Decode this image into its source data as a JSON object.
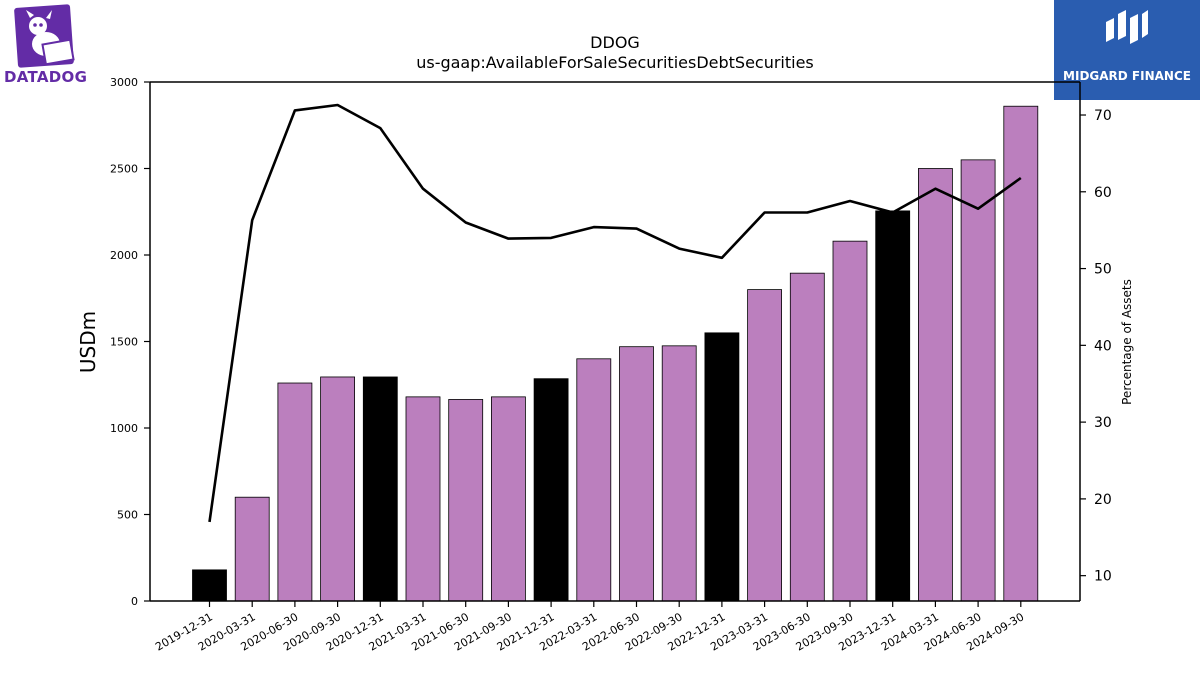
{
  "branding": {
    "left_logo_text": "DATADOG",
    "right_logo_text": "MIDGARD FINANCE",
    "left_logo_color": "#632ca6",
    "right_logo_bg": "#2a5db0"
  },
  "chart_data": {
    "type": "bar",
    "title": "DDOG",
    "subtitle": "us-gaap:AvailableForSaleSecuritiesDebtSecurities",
    "ylabel": "USDm",
    "y2label": "Percentage of Assets",
    "categories": [
      "2019-12-31",
      "2020-03-31",
      "2020-06-30",
      "2020-09-30",
      "2020-12-31",
      "2021-03-31",
      "2021-06-30",
      "2021-09-30",
      "2021-12-31",
      "2022-03-31",
      "2022-06-30",
      "2022-09-30",
      "2022-12-31",
      "2023-03-31",
      "2023-06-30",
      "2023-09-30",
      "2023-12-31",
      "2024-03-31",
      "2024-06-30",
      "2024-09-30"
    ],
    "series": [
      {
        "type": "bar",
        "values": [
          180,
          600,
          1260,
          1295,
          1295,
          1180,
          1165,
          1180,
          1285,
          1400,
          1470,
          1475,
          1550,
          1800,
          1895,
          2080,
          2255,
          2500,
          2550,
          2860
        ],
        "colors": [
          "#000000",
          "#bb7fbe",
          "#bb7fbe",
          "#bb7fbe",
          "#000000",
          "#bb7fbe",
          "#bb7fbe",
          "#bb7fbe",
          "#000000",
          "#bb7fbe",
          "#bb7fbe",
          "#bb7fbe",
          "#000000",
          "#bb7fbe",
          "#bb7fbe",
          "#bb7fbe",
          "#000000",
          "#bb7fbe",
          "#bb7fbe",
          "#bb7fbe"
        ]
      },
      {
        "type": "line",
        "axis": "right",
        "values": [
          17,
          56.3,
          70.6,
          71.3,
          68.3,
          60.4,
          56,
          53.9,
          54,
          55.4,
          55.2,
          52.6,
          51.4,
          57.3,
          57.3,
          58.8,
          57.3,
          60.4,
          57.8,
          61.8
        ],
        "color": "#000000"
      }
    ],
    "ylim": [
      0,
      3000
    ],
    "y2lim": [
      6.7,
      74.3
    ],
    "yticks": [
      0,
      500,
      1000,
      1500,
      2000,
      2500,
      3000
    ],
    "y2ticks": [
      10,
      20,
      30,
      40,
      50,
      60,
      70
    ],
    "grid": false,
    "legend": "none"
  }
}
